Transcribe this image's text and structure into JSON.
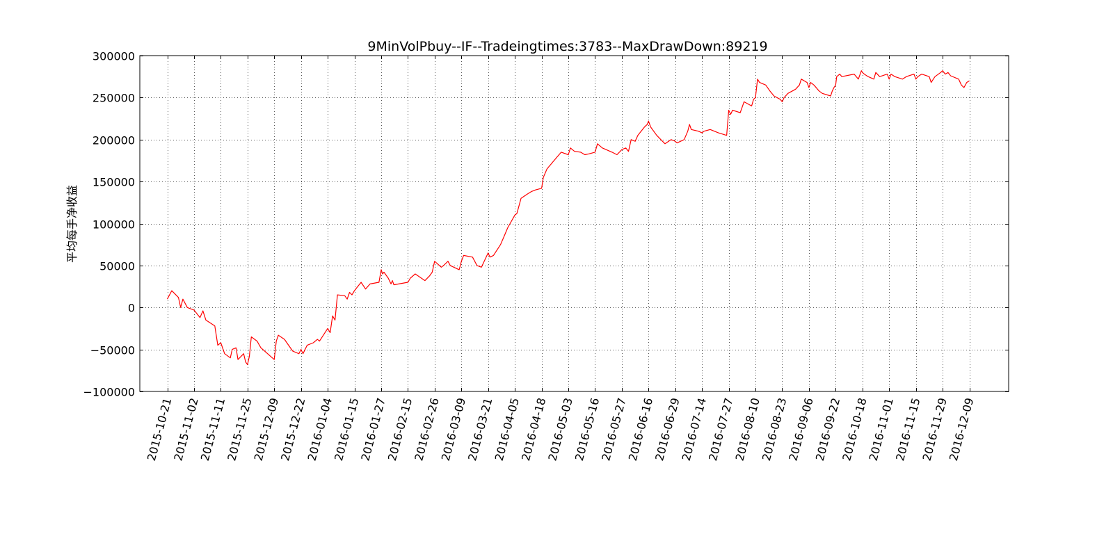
{
  "chart_data": {
    "type": "line",
    "title": "9MinVolPbuy--IF--Tradeingtimes:3783--MaxDrawDown:89219",
    "xlabel": "",
    "ylabel": "平均每手净收益",
    "ylim": [
      -100000,
      300000
    ],
    "yticks": [
      -100000,
      -50000,
      0,
      50000,
      100000,
      150000,
      200000,
      250000,
      300000
    ],
    "ytick_labels": [
      "−100000",
      "−50000",
      "0",
      "50000",
      "100000",
      "150000",
      "200000",
      "250000",
      "300000"
    ],
    "xtick_labels": [
      "2015-10-21",
      "2015-11-02",
      "2015-11-11",
      "2015-11-25",
      "2015-12-09",
      "2015-12-22",
      "2016-01-04",
      "2016-01-15",
      "2016-01-27",
      "2016-02-15",
      "2016-02-26",
      "2016-03-09",
      "2016-03-21",
      "2016-04-05",
      "2016-04-18",
      "2016-05-03",
      "2016-05-16",
      "2016-05-27",
      "2016-06-16",
      "2016-06-29",
      "2016-07-14",
      "2016-07-27",
      "2016-08-10",
      "2016-08-23",
      "2016-09-06",
      "2016-09-22",
      "2016-10-18",
      "2016-11-01",
      "2016-11-15",
      "2016-11-29",
      "2016-12-09"
    ],
    "x_tick_rotation_deg": 75,
    "grid": true,
    "grid_style": "dotted",
    "legend": false,
    "series": [
      {
        "color": "#ff0000",
        "points": [
          [
            "2015-10-21",
            10000
          ],
          [
            "2015-10-23",
            20000
          ],
          [
            "2015-10-26",
            12000
          ],
          [
            "2015-10-27",
            0
          ],
          [
            "2015-10-28",
            10000
          ],
          [
            "2015-10-30",
            0
          ],
          [
            "2015-11-02",
            -3000
          ],
          [
            "2015-11-04",
            -12000
          ],
          [
            "2015-11-05",
            -4000
          ],
          [
            "2015-11-06",
            -15000
          ],
          [
            "2015-11-09",
            -22000
          ],
          [
            "2015-11-10",
            -45000
          ],
          [
            "2015-11-11",
            -42000
          ],
          [
            "2015-11-13",
            -55000
          ],
          [
            "2015-11-16",
            -60000
          ],
          [
            "2015-11-17",
            -50000
          ],
          [
            "2015-11-19",
            -48000
          ],
          [
            "2015-11-20",
            -62000
          ],
          [
            "2015-11-23",
            -55000
          ],
          [
            "2015-11-24",
            -65000
          ],
          [
            "2015-11-25",
            -68000
          ],
          [
            "2015-11-26",
            -58000
          ],
          [
            "2015-11-27",
            -35000
          ],
          [
            "2015-11-30",
            -40000
          ],
          [
            "2015-12-02",
            -48000
          ],
          [
            "2015-12-04",
            -52000
          ],
          [
            "2015-12-07",
            -58000
          ],
          [
            "2015-12-08",
            -60000
          ],
          [
            "2015-12-09",
            -62000
          ],
          [
            "2015-12-10",
            -40000
          ],
          [
            "2015-12-11",
            -33000
          ],
          [
            "2015-12-14",
            -38000
          ],
          [
            "2015-12-16",
            -45000
          ],
          [
            "2015-12-18",
            -52000
          ],
          [
            "2015-12-21",
            -55000
          ],
          [
            "2015-12-22",
            -50000
          ],
          [
            "2015-12-23",
            -55000
          ],
          [
            "2015-12-25",
            -45000
          ],
          [
            "2015-12-28",
            -42000
          ],
          [
            "2015-12-30",
            -38000
          ],
          [
            "2015-12-31",
            -40000
          ],
          [
            "2016-01-04",
            -25000
          ],
          [
            "2016-01-05",
            -30000
          ],
          [
            "2016-01-06",
            -10000
          ],
          [
            "2016-01-07",
            -15000
          ],
          [
            "2016-01-08",
            15000
          ],
          [
            "2016-01-11",
            14000
          ],
          [
            "2016-01-12",
            10000
          ],
          [
            "2016-01-13",
            18000
          ],
          [
            "2016-01-14",
            15000
          ],
          [
            "2016-01-15",
            20000
          ],
          [
            "2016-01-18",
            30000
          ],
          [
            "2016-01-20",
            22000
          ],
          [
            "2016-01-22",
            28000
          ],
          [
            "2016-01-26",
            30000
          ],
          [
            "2016-01-27",
            45000
          ],
          [
            "2016-01-28",
            40000
          ],
          [
            "2016-01-29",
            42000
          ],
          [
            "2016-02-01",
            35000
          ],
          [
            "2016-02-03",
            28000
          ],
          [
            "2016-02-04",
            32000
          ],
          [
            "2016-02-05",
            27000
          ],
          [
            "2016-02-15",
            30000
          ],
          [
            "2016-02-16",
            35000
          ],
          [
            "2016-02-18",
            40000
          ],
          [
            "2016-02-22",
            32000
          ],
          [
            "2016-02-24",
            38000
          ],
          [
            "2016-02-25",
            42000
          ],
          [
            "2016-02-26",
            55000
          ],
          [
            "2016-02-29",
            48000
          ],
          [
            "2016-03-01",
            50000
          ],
          [
            "2016-03-03",
            55000
          ],
          [
            "2016-03-04",
            50000
          ],
          [
            "2016-03-08",
            45000
          ],
          [
            "2016-03-09",
            55000
          ],
          [
            "2016-03-10",
            62000
          ],
          [
            "2016-03-14",
            60000
          ],
          [
            "2016-03-16",
            50000
          ],
          [
            "2016-03-18",
            48000
          ],
          [
            "2016-03-21",
            65000
          ],
          [
            "2016-03-22",
            60000
          ],
          [
            "2016-03-24",
            62000
          ],
          [
            "2016-03-28",
            75000
          ],
          [
            "2016-03-30",
            85000
          ],
          [
            "2016-04-01",
            95000
          ],
          [
            "2016-04-05",
            110000
          ],
          [
            "2016-04-06",
            112000
          ],
          [
            "2016-04-08",
            130000
          ],
          [
            "2016-04-11",
            135000
          ],
          [
            "2016-04-13",
            138000
          ],
          [
            "2016-04-15",
            140000
          ],
          [
            "2016-04-18",
            142000
          ],
          [
            "2016-04-19",
            155000
          ],
          [
            "2016-04-21",
            165000
          ],
          [
            "2016-04-25",
            175000
          ],
          [
            "2016-04-27",
            180000
          ],
          [
            "2016-04-29",
            185000
          ],
          [
            "2016-05-03",
            182000
          ],
          [
            "2016-05-04",
            190000
          ],
          [
            "2016-05-06",
            186000
          ],
          [
            "2016-05-09",
            185000
          ],
          [
            "2016-05-11",
            182000
          ],
          [
            "2016-05-13",
            183000
          ],
          [
            "2016-05-16",
            185000
          ],
          [
            "2016-05-17",
            195000
          ],
          [
            "2016-05-19",
            190000
          ],
          [
            "2016-05-23",
            185000
          ],
          [
            "2016-05-25",
            182000
          ],
          [
            "2016-05-27",
            188000
          ],
          [
            "2016-05-30",
            190000
          ],
          [
            "2016-06-01",
            186000
          ],
          [
            "2016-06-03",
            200000
          ],
          [
            "2016-06-06",
            198000
          ],
          [
            "2016-06-08",
            205000
          ],
          [
            "2016-06-13",
            215000
          ],
          [
            "2016-06-15",
            218000
          ],
          [
            "2016-06-16",
            222000
          ],
          [
            "2016-06-17",
            215000
          ],
          [
            "2016-06-20",
            205000
          ],
          [
            "2016-06-22",
            200000
          ],
          [
            "2016-06-24",
            195000
          ],
          [
            "2016-06-27",
            200000
          ],
          [
            "2016-06-29",
            198000
          ],
          [
            "2016-06-30",
            196000
          ],
          [
            "2016-07-04",
            200000
          ],
          [
            "2016-07-06",
            210000
          ],
          [
            "2016-07-07",
            218000
          ],
          [
            "2016-07-08",
            212000
          ],
          [
            "2016-07-12",
            210000
          ],
          [
            "2016-07-14",
            208000
          ],
          [
            "2016-07-15",
            210000
          ],
          [
            "2016-07-18",
            212000
          ],
          [
            "2016-07-20",
            210000
          ],
          [
            "2016-07-22",
            208000
          ],
          [
            "2016-07-26",
            205000
          ],
          [
            "2016-07-27",
            235000
          ],
          [
            "2016-07-28",
            230000
          ],
          [
            "2016-07-29",
            235000
          ],
          [
            "2016-08-02",
            232000
          ],
          [
            "2016-08-04",
            245000
          ],
          [
            "2016-08-08",
            240000
          ],
          [
            "2016-08-09",
            248000
          ],
          [
            "2016-08-10",
            250000
          ],
          [
            "2016-08-11",
            272000
          ],
          [
            "2016-08-12",
            268000
          ],
          [
            "2016-08-15",
            265000
          ],
          [
            "2016-08-17",
            258000
          ],
          [
            "2016-08-19",
            252000
          ],
          [
            "2016-08-22",
            248000
          ],
          [
            "2016-08-23",
            245000
          ],
          [
            "2016-08-24",
            250000
          ],
          [
            "2016-08-26",
            255000
          ],
          [
            "2016-08-30",
            260000
          ],
          [
            "2016-09-01",
            265000
          ],
          [
            "2016-09-02",
            272000
          ],
          [
            "2016-09-05",
            268000
          ],
          [
            "2016-09-06",
            262000
          ],
          [
            "2016-09-07",
            268000
          ],
          [
            "2016-09-09",
            265000
          ],
          [
            "2016-09-12",
            258000
          ],
          [
            "2016-09-14",
            255000
          ],
          [
            "2016-09-19",
            252000
          ],
          [
            "2016-09-20",
            258000
          ],
          [
            "2016-09-21",
            262000
          ],
          [
            "2016-09-22",
            265000
          ],
          [
            "2016-09-23",
            275000
          ],
          [
            "2016-09-26",
            278000
          ],
          [
            "2016-09-28",
            275000
          ],
          [
            "2016-10-10",
            278000
          ],
          [
            "2016-10-12",
            275000
          ],
          [
            "2016-10-14",
            272000
          ],
          [
            "2016-10-17",
            282000
          ],
          [
            "2016-10-18",
            280000
          ],
          [
            "2016-10-19",
            278000
          ],
          [
            "2016-10-21",
            275000
          ],
          [
            "2016-10-24",
            272000
          ],
          [
            "2016-10-25",
            280000
          ],
          [
            "2016-10-27",
            275000
          ],
          [
            "2016-10-31",
            278000
          ],
          [
            "2016-11-01",
            272000
          ],
          [
            "2016-11-02",
            278000
          ],
          [
            "2016-11-04",
            275000
          ],
          [
            "2016-11-08",
            272000
          ],
          [
            "2016-11-10",
            275000
          ],
          [
            "2016-11-14",
            278000
          ],
          [
            "2016-11-15",
            272000
          ],
          [
            "2016-11-16",
            275000
          ],
          [
            "2016-11-18",
            278000
          ],
          [
            "2016-11-22",
            275000
          ],
          [
            "2016-11-23",
            268000
          ],
          [
            "2016-11-25",
            275000
          ],
          [
            "2016-11-28",
            280000
          ],
          [
            "2016-11-29",
            282000
          ],
          [
            "2016-11-30",
            278000
          ],
          [
            "2016-12-01",
            280000
          ],
          [
            "2016-12-02",
            276000
          ],
          [
            "2016-12-05",
            272000
          ],
          [
            "2016-12-06",
            265000
          ],
          [
            "2016-12-07",
            262000
          ],
          [
            "2016-12-08",
            268000
          ],
          [
            "2016-12-09",
            270000
          ]
        ]
      }
    ]
  }
}
